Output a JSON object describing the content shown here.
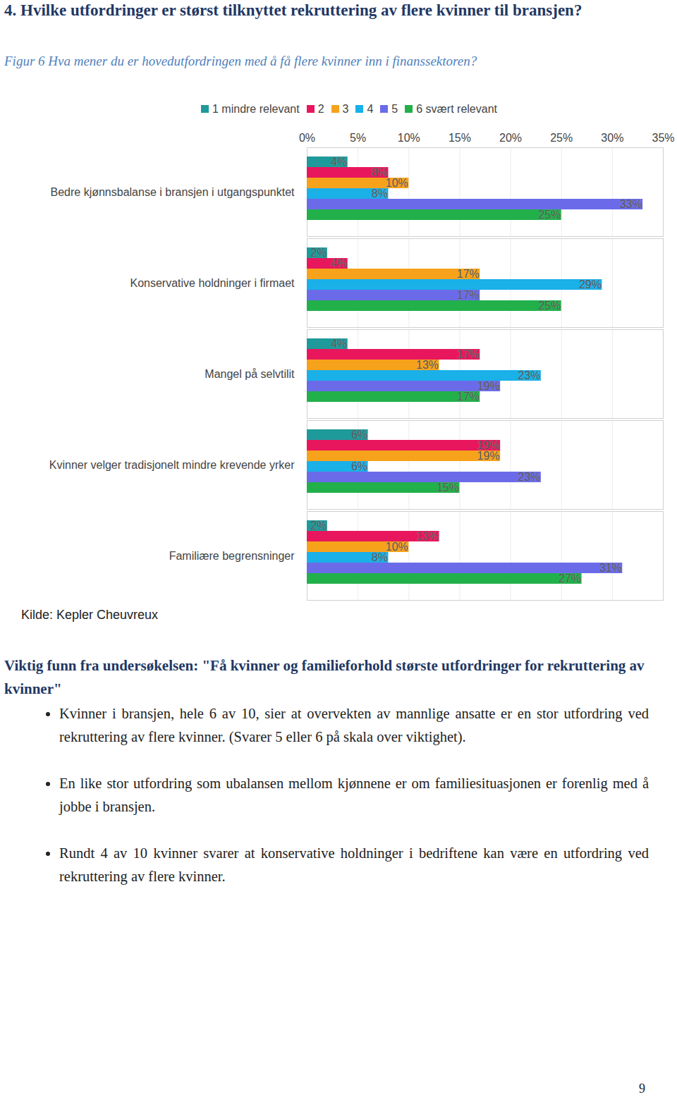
{
  "heading": "4. Hvilke utfordringer er størst tilknyttet rekruttering av flere kvinner til bransjen?",
  "figure_caption": "Figur 6 Hva mener du er hovedutfordringen med å få flere kvinner inn i finanssektoren?",
  "chart_data": {
    "type": "bar",
    "orientation": "horizontal",
    "categories": [
      "Bedre kjønnsbalanse i bransjen i utgangspunktet",
      "Konservative holdninger i firmaet",
      "Mangel på selvtilit",
      "Kvinner velger tradisjonelt mindre krevende yrker",
      "Familiære begrensninger"
    ],
    "series": [
      {
        "name": "1 mindre relevant",
        "color": "#1f9a9a",
        "values": [
          4,
          2,
          4,
          6,
          2
        ],
        "value_labels": [
          "4%",
          "2%",
          "4%",
          "6%",
          "2%"
        ]
      },
      {
        "name": "2",
        "color": "#e8175d",
        "values": [
          8,
          4,
          17,
          19,
          13
        ],
        "value_labels": [
          "8%",
          "4%",
          "17%",
          "19%",
          "13%"
        ]
      },
      {
        "name": "3",
        "color": "#f7a21b",
        "values": [
          10,
          17,
          13,
          19,
          10
        ],
        "value_labels": [
          "10%",
          "17%",
          "13%",
          "19%",
          "10%"
        ]
      },
      {
        "name": "4",
        "color": "#1ab0e8",
        "values": [
          8,
          29,
          23,
          6,
          8
        ],
        "value_labels": [
          "8%",
          "29%",
          "23%",
          "6%",
          "8%"
        ]
      },
      {
        "name": "5",
        "color": "#6b6bea",
        "values": [
          33,
          17,
          19,
          23,
          31
        ],
        "value_labels": [
          "33%",
          "17%",
          "19%",
          "23%",
          "31%"
        ]
      },
      {
        "name": "6 svært relevant",
        "color": "#22b04b",
        "values": [
          25,
          25,
          17,
          15,
          27
        ],
        "value_labels": [
          "25%",
          "25%",
          "17%",
          "15%",
          "27%"
        ]
      }
    ],
    "xlim": [
      0,
      35
    ],
    "xticks": [
      {
        "value": 0,
        "label": "0%"
      },
      {
        "value": 5,
        "label": "5%"
      },
      {
        "value": 10,
        "label": "10%"
      },
      {
        "value": 15,
        "label": "15%"
      },
      {
        "value": 20,
        "label": "20%"
      },
      {
        "value": 25,
        "label": "25%"
      },
      {
        "value": 30,
        "label": "30%"
      },
      {
        "value": 35,
        "label": "35%"
      }
    ],
    "grid": true,
    "data_labels": true,
    "legend": "top"
  },
  "source": "Kilde: Kepler Cheuvreux",
  "findings": {
    "title": "Viktig funn fra undersøkelsen: \"Få kvinner og familieforhold største utfordringer for rekruttering av kvinner\"",
    "bullets": [
      "Kvinner i bransjen, hele 6 av 10, sier at overvekten av mannlige ansatte er en stor utfordring ved rekruttering av flere kvinner. (Svarer 5 eller 6 på skala over viktighet).",
      "En like stor utfordring som ubalansen mellom kjønnene er om familiesituasjonen er forenlig med å jobbe i bransjen.",
      "Rundt 4 av 10 kvinner svarer at konservative holdninger i bedriftene kan være en utfordring ved rekruttering av flere kvinner."
    ]
  },
  "page_number": "9"
}
